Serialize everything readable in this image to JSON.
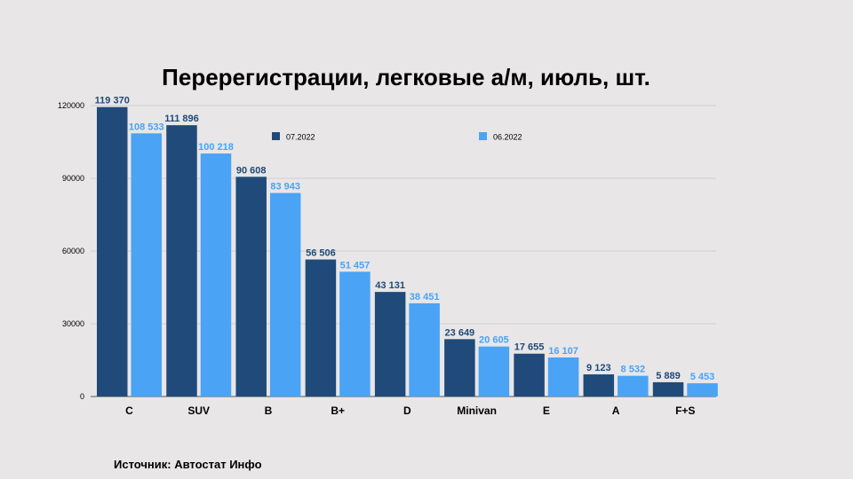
{
  "title": "Перерегистрации, легковые а/м, июль, шт.",
  "source": "Источник: Автостат Инфо",
  "colors": {
    "series_0": "#1f4a7a",
    "series_1": "#4aa3f5",
    "grid": "#c9c7c7"
  },
  "chart_data": {
    "type": "bar",
    "title": "Перерегистрации, легковые а/м, июль, шт.",
    "categories": [
      "C",
      "SUV",
      "B",
      "B+",
      "D",
      "Minivan",
      "E",
      "A",
      "F+S"
    ],
    "series": [
      {
        "name": "07.2022",
        "values": [
          119370,
          111896,
          90608,
          56506,
          43131,
          23649,
          17655,
          9123,
          5889
        ],
        "labels": [
          "119 370",
          "111 896",
          "90 608",
          "56 506",
          "43 131",
          "23 649",
          "17 655",
          "9 123",
          "5 889"
        ]
      },
      {
        "name": "06.2022",
        "values": [
          108533,
          100218,
          83943,
          51457,
          38451,
          20605,
          16107,
          8532,
          5453
        ],
        "labels": [
          "108 533",
          "100 218",
          "83 943",
          "51 457",
          "38 451",
          "20 605",
          "16 107",
          "8 532",
          "5 453"
        ]
      }
    ],
    "ylim": [
      0,
      120000
    ],
    "yticks": [
      "0",
      "30000",
      "60000",
      "90000",
      "120000"
    ],
    "grid": true,
    "legend_position": "top"
  }
}
